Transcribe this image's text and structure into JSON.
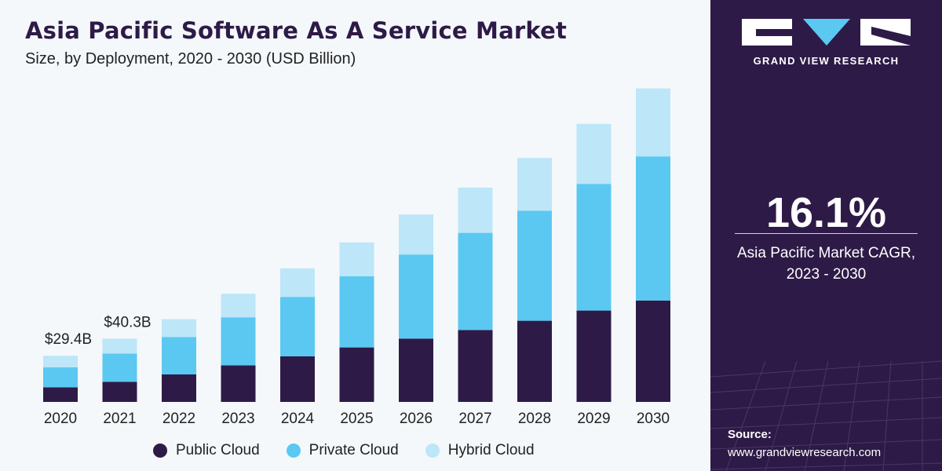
{
  "header": {
    "title": "Asia Pacific Software As A Service Market",
    "subtitle": "Size, by Deployment, 2020 - 2030 (USD Billion)"
  },
  "chart_data": {
    "type": "bar",
    "stacked": true,
    "categories": [
      "2020",
      "2021",
      "2022",
      "2023",
      "2024",
      "2025",
      "2026",
      "2027",
      "2028",
      "2029",
      "2030"
    ],
    "series": [
      {
        "name": "Public Cloud",
        "color": "#2e1a47",
        "values": [
          9.3,
          12.8,
          17.5,
          23.3,
          29.0,
          34.7,
          40.3,
          45.8,
          51.7,
          58.2,
          64.6
        ]
      },
      {
        "name": "Private Cloud",
        "color": "#5bc8f2",
        "values": [
          12.8,
          18.0,
          23.9,
          30.6,
          37.9,
          45.4,
          53.6,
          61.9,
          70.1,
          80.7,
          91.8
        ]
      },
      {
        "name": "Hybrid Cloud",
        "color": "#bde6f8",
        "values": [
          7.3,
          9.5,
          11.3,
          15.0,
          18.2,
          21.5,
          25.5,
          28.8,
          33.6,
          38.2,
          43.3
        ]
      }
    ],
    "data_labels": [
      {
        "category": "2020",
        "text": "$29.4B"
      },
      {
        "category": "2021",
        "text": "$40.3B"
      }
    ],
    "ylim": [
      0,
      200
    ],
    "grid": false,
    "legend_position": "bottom"
  },
  "legend": {
    "items": [
      {
        "label": "Public Cloud",
        "color": "#2e1a47"
      },
      {
        "label": "Private Cloud",
        "color": "#5bc8f2"
      },
      {
        "label": "Hybrid Cloud",
        "color": "#bde6f8"
      }
    ]
  },
  "sidebar": {
    "brand": "GRAND VIEW RESEARCH",
    "cagr_value": "16.1%",
    "cagr_caption_line1": "Asia Pacific Market CAGR,",
    "cagr_caption_line2": "2023 - 2030",
    "source_label": "Source:",
    "source_url": "www.grandviewresearch.com"
  }
}
